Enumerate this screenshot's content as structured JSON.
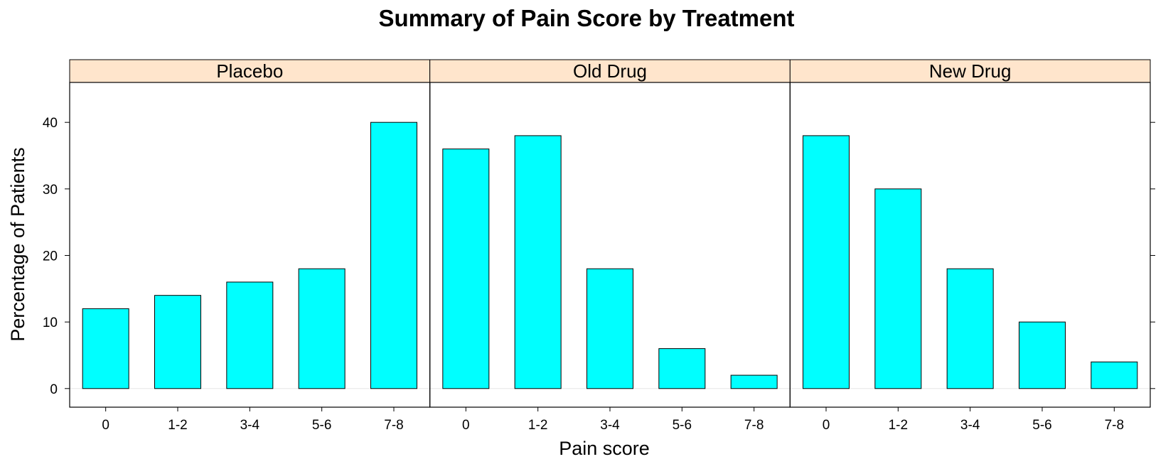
{
  "chart_data": {
    "type": "bar",
    "title": "Summary of Pain Score by Treatment",
    "xlabel": "Pain score",
    "ylabel": "Percentage of Patients",
    "categories": [
      "0",
      "1-2",
      "3-4",
      "5-6",
      "7-8"
    ],
    "yticks": [
      "0",
      "10",
      "20",
      "30",
      "40"
    ],
    "ylim": [
      -2.8,
      46
    ],
    "grid": false,
    "bar_color": "#00FFFF",
    "strip_color": "#FFE5CC",
    "panels": [
      {
        "name": "Placebo",
        "values": [
          12,
          14,
          16,
          18,
          40
        ]
      },
      {
        "name": "Old Drug",
        "values": [
          36,
          38,
          18,
          6,
          2
        ]
      },
      {
        "name": "New Drug",
        "values": [
          38,
          30,
          18,
          10,
          4
        ]
      }
    ]
  }
}
